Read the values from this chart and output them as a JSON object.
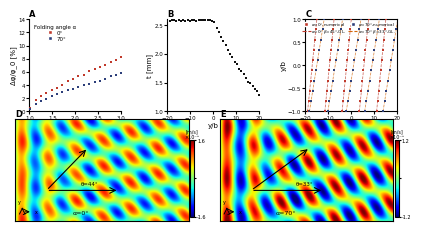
{
  "panel_A": {
    "title": "A",
    "legend_title": "Folding angle α",
    "legend_0": "0°",
    "legend_70": "70°",
    "xlabel": "t [mm]",
    "ylabel": "Δφ/φ_0 [%]",
    "xlim": [
      1,
      3
    ],
    "ylim": [
      0,
      14
    ],
    "color_0": "#c0392b",
    "color_70": "#2c3e7a",
    "xticks": [
      1.0,
      1.5,
      2.0,
      2.5,
      3.0
    ],
    "yticks": [
      0,
      2,
      4,
      6,
      8,
      10,
      12,
      14
    ]
  },
  "panel_B": {
    "title": "B",
    "xlabel": "y/b",
    "ylabel": "t [mm]",
    "xlim": [
      -20,
      20
    ],
    "ylim": [
      1.0,
      2.6
    ],
    "color": "#111111",
    "xticks": [
      -20,
      -10,
      0,
      10,
      20
    ],
    "yticks": [
      1.0,
      1.5,
      2.0,
      2.5
    ]
  },
  "panel_C": {
    "title": "C",
    "xlabel": "y/b",
    "ylabel": "y/b",
    "xlim": [
      -20,
      20
    ],
    "ylim": [
      -1,
      1
    ],
    "color_red": "#c0392b",
    "color_blue": "#2c3e7a",
    "color_red_line": "#c0392b",
    "color_orange_line": "#d4670a",
    "xticks": [
      -20,
      -10,
      0,
      10,
      20
    ],
    "yticks": [
      -1.0,
      -0.5,
      0.0,
      0.5,
      1.0
    ]
  },
  "panel_D": {
    "title": "D",
    "angle_label": "θ=44°",
    "alpha_label": "α=0°",
    "cbar_max": 1.6,
    "cbar_min": -1.6,
    "cbar_ticks": [
      1.6,
      0,
      -1.6
    ]
  },
  "panel_E": {
    "title": "E",
    "angle_label": "θ=33°",
    "alpha_label": "α=70°",
    "cbar_max": 1.2,
    "cbar_min": -1.2,
    "cbar_ticks": [
      1.2,
      0,
      -1.2
    ]
  }
}
